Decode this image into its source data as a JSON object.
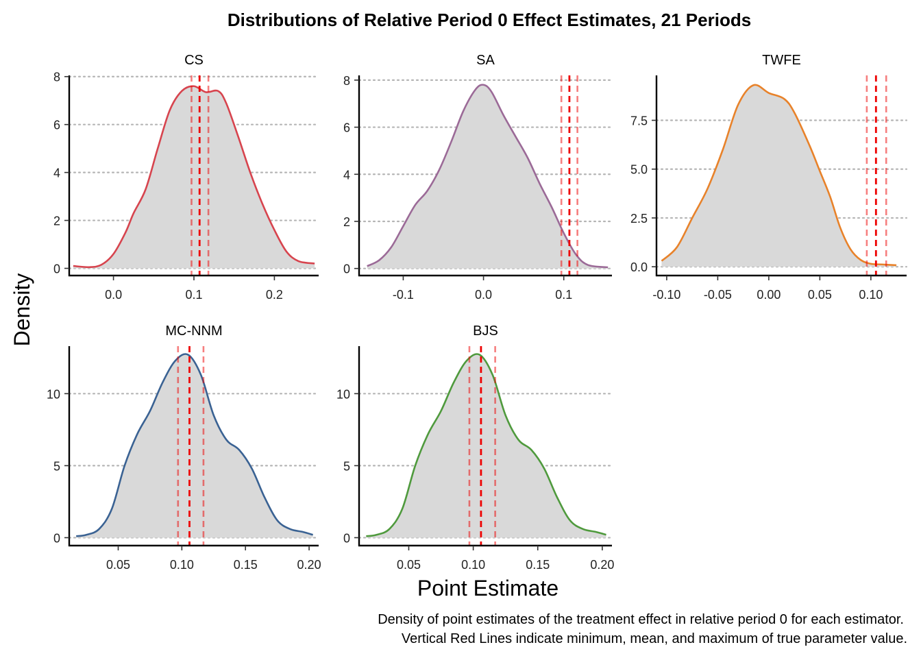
{
  "chart_data": {
    "type": "area",
    "title": "Distributions of Relative Period 0 Effect Estimates, 21 Periods",
    "xlabel": "Point Estimate",
    "ylabel": "Density",
    "caption_lines": [
      "Density of point estimates of the treatment effect in relative period 0 for each estimator.",
      "Vertical Red Lines indicate minimum, mean, and maximum of true parameter value."
    ],
    "fill_color": "#d9d9d9",
    "reference_line_color": "#ee0000",
    "grid": "horizontal-dotted",
    "panels": [
      {
        "name": "CS",
        "color": "#d7444e",
        "xlim": [
          -0.055,
          0.255
        ],
        "ylim": [
          -0.3,
          8.05
        ],
        "x_ticks": [
          0.0,
          0.1,
          0.2
        ],
        "x_tick_labels": [
          "0.0",
          "0.1",
          "0.2"
        ],
        "y_ticks": [
          0,
          2,
          4,
          6,
          8
        ],
        "y_tick_labels": [
          "0",
          "2",
          "4",
          "6",
          "8"
        ],
        "vlines": [
          0.097,
          0.107,
          0.118
        ],
        "x": [
          -0.05,
          -0.03,
          -0.015,
          0.0,
          0.015,
          0.025,
          0.04,
          0.055,
          0.07,
          0.085,
          0.1,
          0.115,
          0.13,
          0.14,
          0.155,
          0.17,
          0.185,
          0.2,
          0.215,
          0.23,
          0.25
        ],
        "y": [
          0.1,
          0.05,
          0.15,
          0.6,
          1.5,
          2.3,
          3.3,
          5.0,
          6.6,
          7.4,
          7.6,
          7.35,
          7.4,
          6.9,
          5.5,
          4.0,
          2.7,
          1.6,
          0.7,
          0.3,
          0.2
        ]
      },
      {
        "name": "SA",
        "color": "#9b6a97",
        "xlim": [
          -0.155,
          0.16
        ],
        "ylim": [
          -0.3,
          8.2
        ],
        "x_ticks": [
          -0.1,
          0.0,
          0.1
        ],
        "x_tick_labels": [
          "-0.1",
          "0.0",
          "0.1"
        ],
        "y_ticks": [
          0,
          2,
          4,
          6,
          8
        ],
        "y_tick_labels": [
          "0",
          "2",
          "4",
          "6",
          "8"
        ],
        "vlines": [
          0.097,
          0.107,
          0.117
        ],
        "x": [
          -0.145,
          -0.13,
          -0.115,
          -0.1,
          -0.085,
          -0.07,
          -0.055,
          -0.04,
          -0.025,
          -0.01,
          0.0,
          0.01,
          0.025,
          0.04,
          0.055,
          0.07,
          0.085,
          0.1,
          0.115,
          0.13,
          0.155
        ],
        "y": [
          0.1,
          0.35,
          0.9,
          1.8,
          2.7,
          3.3,
          4.2,
          5.4,
          6.7,
          7.6,
          7.8,
          7.5,
          6.5,
          5.6,
          4.7,
          3.6,
          2.6,
          1.5,
          0.6,
          0.15,
          0.05
        ]
      },
      {
        "name": "TWFE",
        "color": "#e8822a",
        "xlim": [
          -0.11,
          0.135
        ],
        "ylim": [
          -0.45,
          9.8
        ],
        "x_ticks": [
          -0.1,
          -0.05,
          0.0,
          0.05,
          0.1
        ],
        "x_tick_labels": [
          "-0.10",
          "-0.05",
          "0.00",
          "0.05",
          "0.10"
        ],
        "y_ticks": [
          0.0,
          2.5,
          5.0,
          7.5
        ],
        "y_tick_labels": [
          "0.0",
          "2.5",
          "5.0",
          "7.5"
        ],
        "vlines": [
          0.096,
          0.105,
          0.115
        ],
        "x": [
          -0.105,
          -0.09,
          -0.075,
          -0.06,
          -0.045,
          -0.03,
          -0.015,
          0.0,
          0.015,
          0.025,
          0.04,
          0.05,
          0.06,
          0.07,
          0.08,
          0.09,
          0.1,
          0.11,
          0.125
        ],
        "y": [
          0.3,
          1.0,
          2.5,
          4.0,
          6.0,
          8.3,
          9.3,
          8.9,
          8.6,
          7.9,
          6.2,
          4.9,
          3.6,
          2.0,
          0.9,
          0.35,
          0.15,
          0.12,
          0.08
        ]
      },
      {
        "name": "MC-NNM",
        "color": "#3a6293",
        "xlim": [
          0.0115,
          0.2075
        ],
        "ylim": [
          -0.55,
          13.3
        ],
        "x_ticks": [
          0.05,
          0.1,
          0.15,
          0.2
        ],
        "x_tick_labels": [
          "0.05",
          "0.10",
          "0.15",
          "0.20"
        ],
        "y_ticks": [
          0,
          5,
          10
        ],
        "y_tick_labels": [
          "0",
          "5",
          "10"
        ],
        "vlines": [
          0.097,
          0.106,
          0.117
        ],
        "x": [
          0.017,
          0.025,
          0.035,
          0.045,
          0.055,
          0.065,
          0.075,
          0.085,
          0.095,
          0.105,
          0.115,
          0.125,
          0.135,
          0.145,
          0.155,
          0.165,
          0.175,
          0.185,
          0.195,
          0.203
        ],
        "y": [
          0.1,
          0.2,
          0.6,
          2.0,
          5.0,
          7.2,
          8.8,
          10.8,
          12.3,
          12.7,
          11.3,
          8.5,
          6.8,
          6.1,
          4.8,
          2.8,
          1.2,
          0.6,
          0.4,
          0.2
        ]
      },
      {
        "name": "BJS",
        "color": "#4f9a3d",
        "xlim": [
          0.0115,
          0.2075
        ],
        "ylim": [
          -0.55,
          13.3
        ],
        "x_ticks": [
          0.05,
          0.1,
          0.15,
          0.2
        ],
        "x_tick_labels": [
          "0.05",
          "0.10",
          "0.15",
          "0.20"
        ],
        "y_ticks": [
          0,
          5,
          10
        ],
        "y_tick_labels": [
          "0",
          "5",
          "10"
        ],
        "vlines": [
          0.097,
          0.106,
          0.117
        ],
        "x": [
          0.017,
          0.025,
          0.035,
          0.045,
          0.055,
          0.065,
          0.075,
          0.085,
          0.095,
          0.105,
          0.115,
          0.125,
          0.135,
          0.145,
          0.155,
          0.165,
          0.175,
          0.185,
          0.195,
          0.203
        ],
        "y": [
          0.1,
          0.2,
          0.6,
          2.0,
          5.0,
          7.2,
          8.8,
          10.8,
          12.3,
          12.7,
          11.3,
          8.5,
          6.8,
          6.1,
          4.8,
          2.8,
          1.2,
          0.6,
          0.4,
          0.2
        ]
      }
    ]
  }
}
